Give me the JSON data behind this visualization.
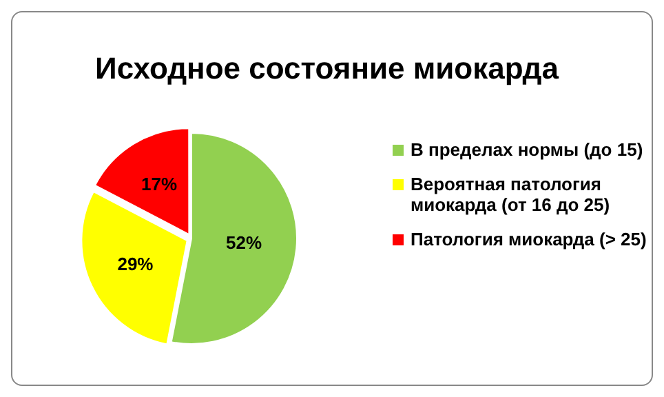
{
  "chart_data": {
    "type": "pie",
    "title": "Исходное состояние миокарда",
    "categories": [
      "В пределах нормы (до 15)",
      "Вероятная патология миокарда (от 16 до 25)",
      "Патология миокарда (> 25)"
    ],
    "values": [
      52,
      29,
      17
    ],
    "colors": [
      "#92d050",
      "#ffff00",
      "#ff0000"
    ],
    "value_labels": [
      "52%",
      "29%",
      "17%"
    ],
    "legend": "right"
  }
}
